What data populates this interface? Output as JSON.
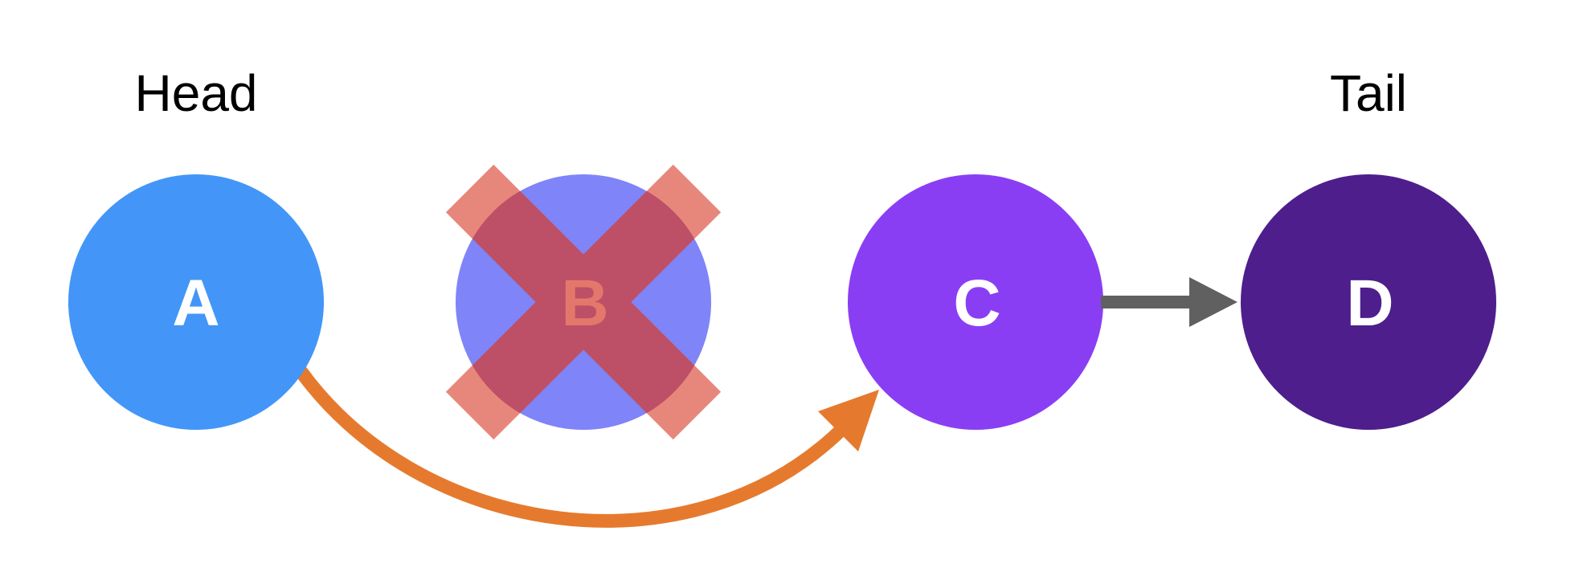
{
  "labels": {
    "head": "Head",
    "tail": "Tail"
  },
  "nodes": [
    {
      "id": "a",
      "letter": "A",
      "color": "#4396f7",
      "text_color": "#ffffff"
    },
    {
      "id": "b",
      "letter": "B",
      "color": "#7f84f8",
      "text_color": "#e4776b",
      "removed": true
    },
    {
      "id": "c",
      "letter": "C",
      "color": "#8a3ef4",
      "text_color": "#ffffff"
    },
    {
      "id": "d",
      "letter": "D",
      "color": "#4d1e8c",
      "text_color": "#ffffff"
    }
  ],
  "colors": {
    "x_mark": "#e4776b",
    "x_overlap": "#bd4f67",
    "bypass_arrow": "#e57a2e",
    "link_arrow": "#606060",
    "label_text": "#000000"
  }
}
